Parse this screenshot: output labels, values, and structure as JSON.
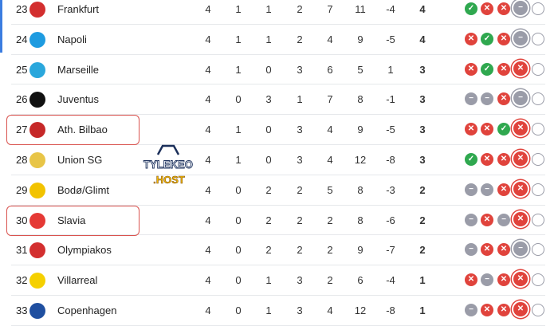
{
  "standings": [
    {
      "pos": "23",
      "team": "Frankfurt",
      "logo_color": "#d32f2f",
      "p": "4",
      "w": "1",
      "d": "1",
      "l": "2",
      "gf": "7",
      "ga": "11",
      "gd": "-4",
      "pts": "4",
      "form": [
        "W",
        "L",
        "L",
        "D",
        "-"
      ]
    },
    {
      "pos": "24",
      "team": "Napoli",
      "logo_color": "#1e9be0",
      "p": "4",
      "w": "1",
      "d": "1",
      "l": "2",
      "gf": "4",
      "ga": "9",
      "gd": "-5",
      "pts": "4",
      "form": [
        "L",
        "W",
        "L",
        "D",
        "-"
      ]
    },
    {
      "pos": "25",
      "team": "Marseille",
      "logo_color": "#2aa7dc",
      "p": "4",
      "w": "1",
      "d": "0",
      "l": "3",
      "gf": "6",
      "ga": "5",
      "gd": "1",
      "pts": "3",
      "form": [
        "L",
        "W",
        "L",
        "L",
        "-"
      ]
    },
    {
      "pos": "26",
      "team": "Juventus",
      "logo_color": "#111111",
      "p": "4",
      "w": "0",
      "d": "3",
      "l": "1",
      "gf": "7",
      "ga": "8",
      "gd": "-1",
      "pts": "3",
      "form": [
        "D",
        "D",
        "L",
        "D",
        "-"
      ]
    },
    {
      "pos": "27",
      "team": "Ath. Bilbao",
      "logo_color": "#c62828",
      "p": "4",
      "w": "1",
      "d": "0",
      "l": "3",
      "gf": "4",
      "ga": "9",
      "gd": "-5",
      "pts": "3",
      "form": [
        "L",
        "L",
        "W",
        "L",
        "-"
      ],
      "highlighted": true
    },
    {
      "pos": "28",
      "team": "Union SG",
      "logo_color": "#e8c547",
      "p": "4",
      "w": "1",
      "d": "0",
      "l": "3",
      "gf": "4",
      "ga": "12",
      "gd": "-8",
      "pts": "3",
      "form": [
        "W",
        "L",
        "L",
        "L",
        "-"
      ]
    },
    {
      "pos": "29",
      "team": "Bodø/Glimt",
      "logo_color": "#f2c300",
      "p": "4",
      "w": "0",
      "d": "2",
      "l": "2",
      "gf": "5",
      "ga": "8",
      "gd": "-3",
      "pts": "2",
      "form": [
        "D",
        "D",
        "L",
        "L",
        "-"
      ]
    },
    {
      "pos": "30",
      "team": "Slavia",
      "logo_color": "#e53935",
      "p": "4",
      "w": "0",
      "d": "2",
      "l": "2",
      "gf": "2",
      "ga": "8",
      "gd": "-6",
      "pts": "2",
      "form": [
        "D",
        "L",
        "D",
        "L",
        "-"
      ],
      "highlighted": true
    },
    {
      "pos": "31",
      "team": "Olympiakos",
      "logo_color": "#d32f2f",
      "p": "4",
      "w": "0",
      "d": "2",
      "l": "2",
      "gf": "2",
      "ga": "9",
      "gd": "-7",
      "pts": "2",
      "form": [
        "D",
        "L",
        "L",
        "D",
        "-"
      ]
    },
    {
      "pos": "32",
      "team": "Villarreal",
      "logo_color": "#f5d000",
      "p": "4",
      "w": "0",
      "d": "1",
      "l": "3",
      "gf": "2",
      "ga": "6",
      "gd": "-4",
      "pts": "1",
      "form": [
        "L",
        "D",
        "L",
        "L",
        "-"
      ]
    },
    {
      "pos": "33",
      "team": "Copenhagen",
      "logo_color": "#1f4fa0",
      "p": "4",
      "w": "0",
      "d": "1",
      "l": "3",
      "gf": "4",
      "ga": "12",
      "gd": "-8",
      "pts": "1",
      "form": [
        "D",
        "L",
        "L",
        "L",
        "-"
      ]
    }
  ],
  "watermark": {
    "line1": "TYLEKEO",
    "line2": ".HOST"
  },
  "colors": {
    "win": "#2fa84f",
    "loss": "#e0433c",
    "draw": "#9a9ca8",
    "highlight": "#d9534f",
    "accent": "#3b7de0"
  }
}
